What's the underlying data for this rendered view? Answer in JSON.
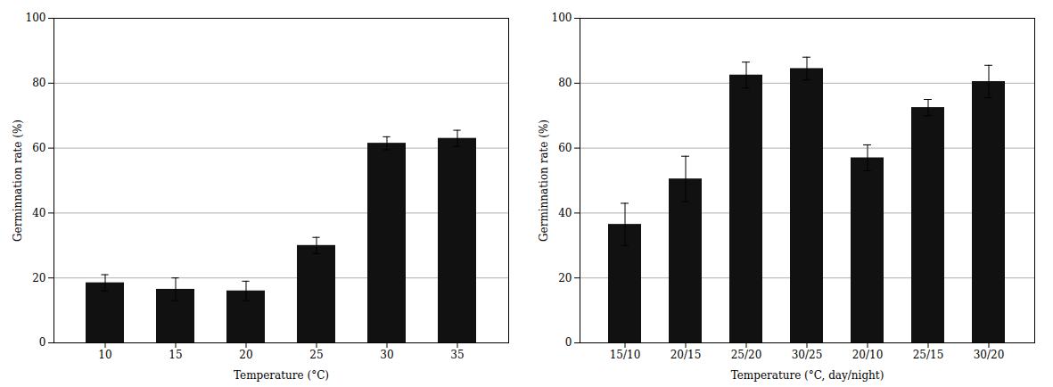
{
  "chart_data": [
    {
      "type": "bar",
      "categories": [
        "10",
        "15",
        "20",
        "25",
        "30",
        "35"
      ],
      "values": [
        18.5,
        16.5,
        16.0,
        30.0,
        61.5,
        63.0
      ],
      "errors": [
        2.5,
        3.5,
        3.0,
        2.5,
        2.0,
        2.5
      ],
      "xlabel": "Temperature (°C)",
      "ylabel": "Germinnation rate (%)",
      "ylim": [
        0,
        100
      ],
      "yticks": [
        0,
        20,
        40,
        60,
        80,
        100
      ],
      "color": "#111111",
      "grid": true
    },
    {
      "type": "bar",
      "categories": [
        "15/10",
        "20/15",
        "25/20",
        "30/25",
        "20/10",
        "25/15",
        "30/20"
      ],
      "values": [
        36.5,
        50.5,
        82.5,
        84.5,
        57.0,
        72.5,
        80.5
      ],
      "errors": [
        6.5,
        7.0,
        4.0,
        3.5,
        4.0,
        2.5,
        5.0
      ],
      "xlabel": "Temperature (°C, day/night)",
      "ylabel": "Germinnation rate (%)",
      "ylim": [
        0,
        100
      ],
      "yticks": [
        0,
        20,
        40,
        60,
        80,
        100
      ],
      "color": "#111111",
      "grid": true
    }
  ]
}
